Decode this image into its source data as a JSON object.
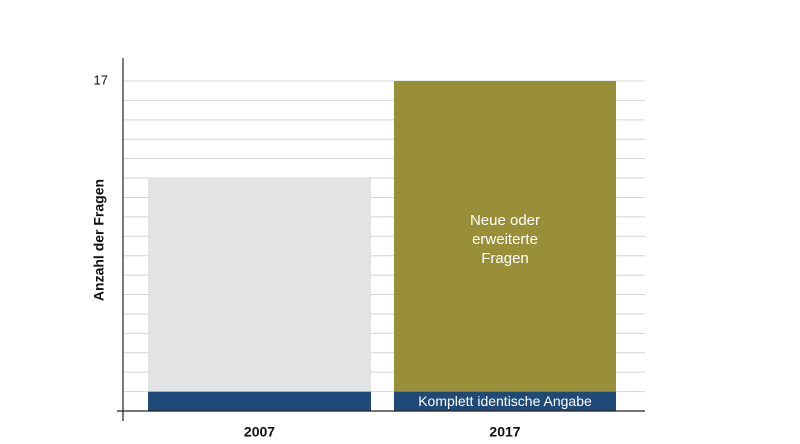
{
  "chart_data": {
    "type": "stacked_bar",
    "y_label": "Anzahl der Fragen",
    "categories": [
      "2007",
      "2017"
    ],
    "series": [
      {
        "name": "Komplett identische Angabe",
        "color": "#1f4a77",
        "values": [
          1,
          1
        ]
      },
      {
        "color": "#e3e3e3",
        "values": [
          11,
          null
        ]
      },
      {
        "name": "Neue oder erweiterte Fragen",
        "color": "#9a8f39",
        "values": [
          null,
          16
        ]
      }
    ],
    "ylim": [
      0,
      17
    ],
    "yticks": [
      17
    ],
    "yticks_minor": [
      1,
      2,
      3,
      4,
      5,
      6,
      7,
      8,
      9,
      10,
      11,
      12,
      13,
      14,
      15,
      16
    ],
    "grid": true
  }
}
